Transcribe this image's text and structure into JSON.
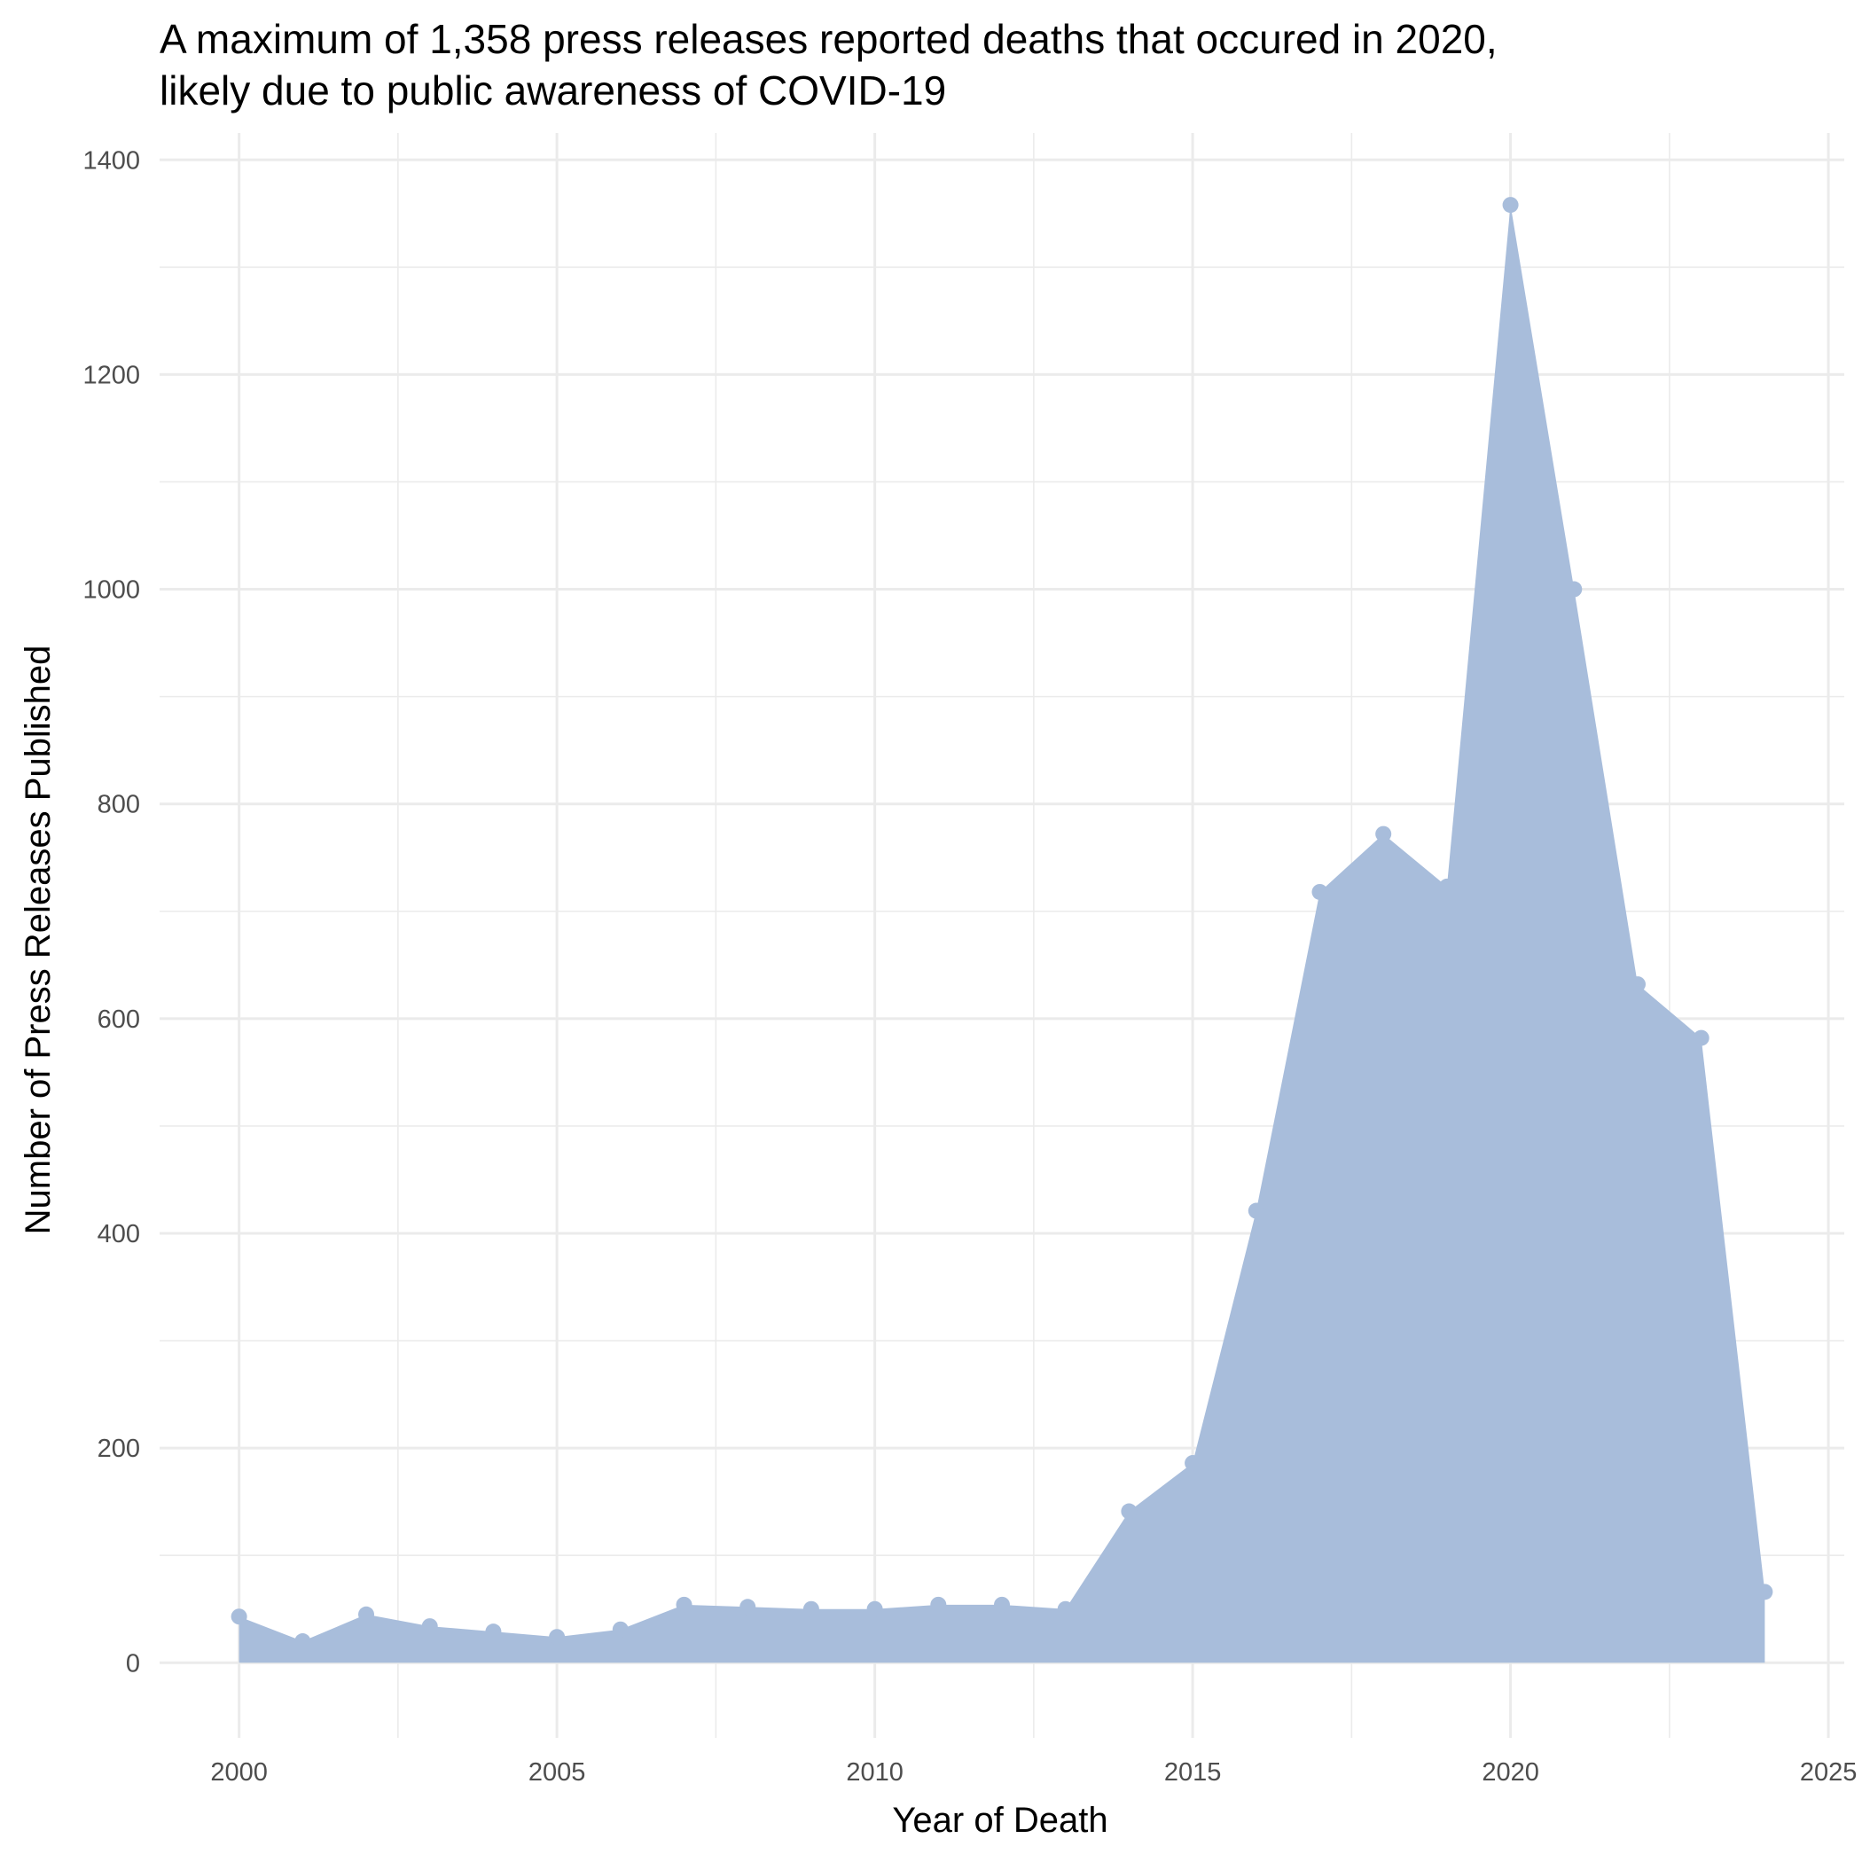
{
  "chart_data": {
    "type": "area",
    "title_lines": [
      "A maximum of 1,358 press releases reported deaths that occured in 2020,",
      "likely due to public awareness of COVID-19"
    ],
    "xlabel": "Year of Death",
    "ylabel": "Number of Press Releases Published",
    "x": [
      2000,
      2001,
      2002,
      2003,
      2004,
      2005,
      2006,
      2007,
      2008,
      2009,
      2010,
      2011,
      2012,
      2013,
      2014,
      2015,
      2016,
      2017,
      2018,
      2019,
      2020,
      2021,
      2022,
      2023,
      2024
    ],
    "y": [
      43,
      20,
      45,
      34,
      29,
      24,
      31,
      54,
      52,
      50,
      50,
      54,
      54,
      50,
      141,
      186,
      421,
      718,
      772,
      723,
      1358,
      1000,
      632,
      582,
      66
    ],
    "xlim": [
      1998.75,
      2025.25
    ],
    "ylim": [
      -70,
      1425
    ],
    "x_ticks": [
      "2000",
      "2005",
      "2010",
      "2015",
      "2020",
      "2025"
    ],
    "y_ticks": [
      "0",
      "200",
      "400",
      "600",
      "800",
      "1000",
      "1200",
      "1400"
    ],
    "grid": true,
    "fill_color": "#a8bddb",
    "point_color": "#a8bddb",
    "legend": "none"
  }
}
